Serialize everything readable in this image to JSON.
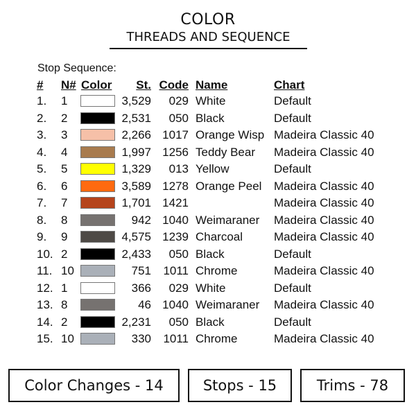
{
  "header": {
    "title": "COLOR",
    "subtitle": "THREADS AND SEQUENCE"
  },
  "stop_sequence_label": "Stop Sequence:",
  "columns": {
    "idx": "#",
    "n": "N#",
    "color": "Color",
    "st": "St.",
    "code": "Code",
    "name": "Name",
    "chart": "Chart"
  },
  "rows": [
    {
      "idx": "1.",
      "n": "1",
      "color": "#ffffff",
      "st": "3,529",
      "code": "029",
      "name": "White",
      "chart": "Default"
    },
    {
      "idx": "2.",
      "n": "2",
      "color": "#000000",
      "st": "2,531",
      "code": "050",
      "name": "Black",
      "chart": "Default"
    },
    {
      "idx": "3.",
      "n": "3",
      "color": "#f6c0a8",
      "st": "2,266",
      "code": "1017",
      "name": "Orange Wisp",
      "chart": "Madeira Classic 40"
    },
    {
      "idx": "4.",
      "n": "4",
      "color": "#a87b4e",
      "st": "1,997",
      "code": "1256",
      "name": "Teddy Bear",
      "chart": "Madeira Classic 40"
    },
    {
      "idx": "5.",
      "n": "5",
      "color": "#ffff00",
      "st": "1,329",
      "code": "013",
      "name": "Yellow",
      "chart": "Default"
    },
    {
      "idx": "6.",
      "n": "6",
      "color": "#ff6a10",
      "st": "3,589",
      "code": "1278",
      "name": "Orange Peel",
      "chart": "Madeira Classic 40"
    },
    {
      "idx": "7.",
      "n": "7",
      "color": "#b5441c",
      "st": "1,701",
      "code": "1421",
      "name": "",
      "chart": "Madeira Classic 40"
    },
    {
      "idx": "8.",
      "n": "8",
      "color": "#767270",
      "st": "942",
      "code": "1040",
      "name": "Weimaraner",
      "chart": "Madeira Classic 40"
    },
    {
      "idx": "9.",
      "n": "9",
      "color": "#4e4a46",
      "st": "4,575",
      "code": "1239",
      "name": "Charcoal",
      "chart": "Madeira Classic 40"
    },
    {
      "idx": "10.",
      "n": "2",
      "color": "#000000",
      "st": "2,433",
      "code": "050",
      "name": "Black",
      "chart": "Default"
    },
    {
      "idx": "11.",
      "n": "10",
      "color": "#aab0b8",
      "st": "751",
      "code": "1011",
      "name": "Chrome",
      "chart": "Madeira Classic 40"
    },
    {
      "idx": "12.",
      "n": "1",
      "color": "#ffffff",
      "st": "366",
      "code": "029",
      "name": "White",
      "chart": "Default"
    },
    {
      "idx": "13.",
      "n": "8",
      "color": "#767270",
      "st": "46",
      "code": "1040",
      "name": "Weimaraner",
      "chart": "Madeira Classic 40"
    },
    {
      "idx": "14.",
      "n": "2",
      "color": "#000000",
      "st": "2,231",
      "code": "050",
      "name": "Black",
      "chart": "Default"
    },
    {
      "idx": "15.",
      "n": "10",
      "color": "#aab0b8",
      "st": "330",
      "code": "1011",
      "name": "Chrome",
      "chart": "Madeira Classic 40"
    }
  ],
  "summary": {
    "color_changes": "Color Changes - 14",
    "stops": "Stops - 15",
    "trims": "Trims - 78"
  }
}
